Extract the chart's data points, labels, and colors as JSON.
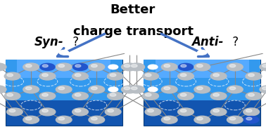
{
  "title_line1": "Better",
  "title_line2": "charge transport",
  "label_left": "Syn-",
  "label_right": "Anti-",
  "question_mark": " ?",
  "bg_color": "#ffffff",
  "title_fontsize": 13,
  "label_fontsize": 12,
  "arrow_color": "#4472C4",
  "mol_bg_dark": "#1255b0",
  "mol_bg_light": "#3399ee",
  "atom_c_color": "#b8bec4",
  "atom_n_color": "#2255cc",
  "atom_h_color": "#ffffff"
}
